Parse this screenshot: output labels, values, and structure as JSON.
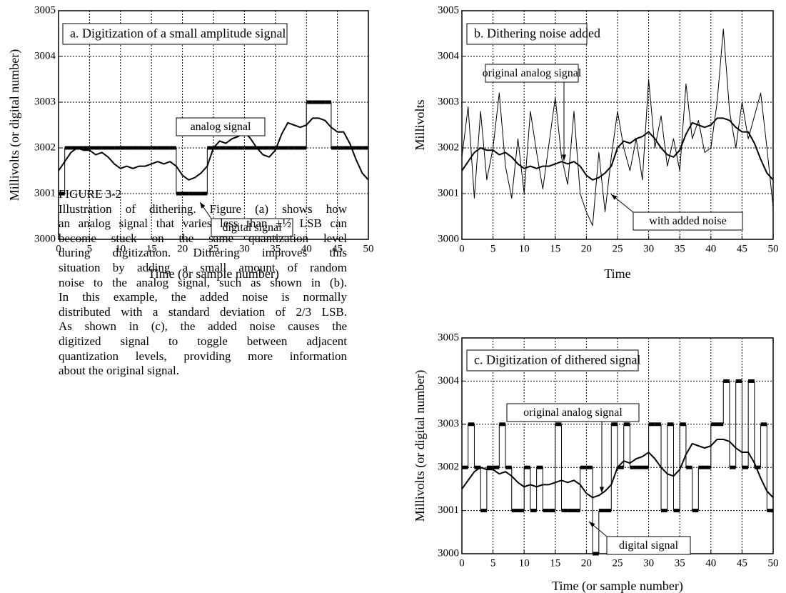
{
  "chart_data": [
    {
      "type": "line",
      "title": "a.  Digitization of a small amplitude signal",
      "xlabel": "Time (or sample number)",
      "ylabel": "Millivolts (or digital number)",
      "xlim": [
        0,
        50
      ],
      "xticks": [
        0,
        5,
        10,
        15,
        20,
        25,
        30,
        35,
        40,
        45,
        50
      ],
      "ylim": [
        3000,
        3005
      ],
      "yticks": [
        3000,
        3001,
        3002,
        3003,
        3004,
        3005
      ],
      "grid": true,
      "series": [
        {
          "name": "analog signal",
          "color": "#000000",
          "style": "line",
          "x": [
            0,
            1,
            2,
            3,
            4,
            5,
            6,
            7,
            8,
            9,
            10,
            11,
            12,
            13,
            14,
            15,
            16,
            17,
            18,
            19,
            20,
            21,
            22,
            23,
            24,
            25,
            26,
            27,
            28,
            29,
            30,
            31,
            32,
            33,
            34,
            35,
            36,
            37,
            38,
            39,
            40,
            41,
            42,
            43,
            44,
            45,
            46,
            47,
            48,
            49,
            50
          ],
          "values": [
            3001.5,
            3001.7,
            3001.9,
            3002.0,
            3001.95,
            3001.95,
            3001.85,
            3001.9,
            3001.8,
            3001.65,
            3001.55,
            3001.6,
            3001.55,
            3001.6,
            3001.6,
            3001.65,
            3001.7,
            3001.65,
            3001.7,
            3001.6,
            3001.4,
            3001.3,
            3001.35,
            3001.45,
            3001.6,
            3002.0,
            3002.15,
            3002.1,
            3002.2,
            3002.25,
            3002.35,
            3002.2,
            3002.0,
            3001.85,
            3001.8,
            3001.95,
            3002.3,
            3002.55,
            3002.5,
            3002.45,
            3002.5,
            3002.65,
            3002.65,
            3002.6,
            3002.45,
            3002.35,
            3002.35,
            3002.1,
            3001.75,
            3001.45,
            3001.3
          ]
        },
        {
          "name": "digital signal",
          "color": "#000000",
          "style": "step",
          "x": [
            0,
            1,
            2,
            3,
            4,
            5,
            6,
            7,
            8,
            9,
            10,
            11,
            12,
            13,
            14,
            15,
            16,
            17,
            18,
            19,
            20,
            21,
            22,
            23,
            24,
            25,
            26,
            27,
            28,
            29,
            30,
            31,
            32,
            33,
            34,
            35,
            36,
            37,
            38,
            39,
            40,
            41,
            42,
            43,
            44,
            45,
            46,
            47,
            48,
            49
          ],
          "values": [
            3001,
            3002,
            3002,
            3002,
            3002,
            3002,
            3002,
            3002,
            3002,
            3002,
            3002,
            3002,
            3002,
            3002,
            3002,
            3002,
            3002,
            3002,
            3002,
            3001,
            3001,
            3001,
            3001,
            3001,
            3002,
            3002,
            3002,
            3002,
            3002,
            3002,
            3002,
            3002,
            3002,
            3002,
            3002,
            3002,
            3002,
            3002,
            3002,
            3002,
            3003,
            3003,
            3003,
            3003,
            3002,
            3002,
            3002,
            3002,
            3002,
            3002
          ]
        }
      ]
    },
    {
      "type": "line",
      "title": "b.  Dithering noise added",
      "xlabel": "Time",
      "ylabel": "Millivolts",
      "xlim": [
        0,
        50
      ],
      "xticks": [
        0,
        5,
        10,
        15,
        20,
        25,
        30,
        35,
        40,
        45,
        50
      ],
      "ylim": [
        3000,
        3005
      ],
      "yticks": [
        3000,
        3001,
        3002,
        3003,
        3004,
        3005
      ],
      "grid": true,
      "series": [
        {
          "name": "original analog signal",
          "color": "#000000",
          "style": "line",
          "x": [
            0,
            1,
            2,
            3,
            4,
            5,
            6,
            7,
            8,
            9,
            10,
            11,
            12,
            13,
            14,
            15,
            16,
            17,
            18,
            19,
            20,
            21,
            22,
            23,
            24,
            25,
            26,
            27,
            28,
            29,
            30,
            31,
            32,
            33,
            34,
            35,
            36,
            37,
            38,
            39,
            40,
            41,
            42,
            43,
            44,
            45,
            46,
            47,
            48,
            49,
            50
          ],
          "values": [
            3001.5,
            3001.7,
            3001.9,
            3002.0,
            3001.95,
            3001.95,
            3001.85,
            3001.9,
            3001.8,
            3001.65,
            3001.55,
            3001.6,
            3001.55,
            3001.6,
            3001.6,
            3001.65,
            3001.7,
            3001.65,
            3001.7,
            3001.6,
            3001.4,
            3001.3,
            3001.35,
            3001.45,
            3001.6,
            3002.0,
            3002.15,
            3002.1,
            3002.2,
            3002.25,
            3002.35,
            3002.2,
            3002.0,
            3001.85,
            3001.8,
            3001.95,
            3002.3,
            3002.55,
            3002.5,
            3002.45,
            3002.5,
            3002.65,
            3002.65,
            3002.6,
            3002.45,
            3002.35,
            3002.35,
            3002.1,
            3001.75,
            3001.45,
            3001.3
          ]
        },
        {
          "name": "with added noise",
          "color": "#000000",
          "style": "thin",
          "x": [
            0,
            1,
            2,
            3,
            4,
            5,
            6,
            7,
            8,
            9,
            10,
            11,
            12,
            13,
            14,
            15,
            16,
            17,
            18,
            19,
            20,
            21,
            22,
            23,
            24,
            25,
            26,
            27,
            28,
            29,
            30,
            31,
            32,
            33,
            34,
            35,
            36,
            37,
            38,
            39,
            40,
            41,
            42,
            43,
            44,
            45,
            46,
            47,
            48,
            49,
            50
          ],
          "values": [
            3001.8,
            3002.9,
            3000.9,
            3002.8,
            3001.3,
            3002.0,
            3003.2,
            3001.6,
            3000.9,
            3002.2,
            3001.0,
            3002.8,
            3001.9,
            3001.1,
            3002.1,
            3003.1,
            3001.8,
            3001.2,
            3002.8,
            3001.0,
            3000.6,
            3000.3,
            3001.9,
            3000.6,
            3001.8,
            3002.8,
            3002.0,
            3001.5,
            3002.2,
            3001.3,
            3003.5,
            3002.0,
            3002.7,
            3001.6,
            3002.2,
            3001.5,
            3003.4,
            3002.2,
            3002.6,
            3001.9,
            3002.0,
            3003.0,
            3004.6,
            3002.8,
            3002.0,
            3003.0,
            3002.2,
            3002.7,
            3003.2,
            3002.0,
            3000.7
          ]
        }
      ]
    },
    {
      "type": "line",
      "title": "c.  Digitization of dithered signal",
      "xlabel": "Time (or sample number)",
      "ylabel": "Millivolts (or digital number)",
      "xlim": [
        0,
        50
      ],
      "xticks": [
        0,
        5,
        10,
        15,
        20,
        25,
        30,
        35,
        40,
        45,
        50
      ],
      "ylim": [
        3000,
        3005
      ],
      "yticks": [
        3000,
        3001,
        3002,
        3003,
        3004,
        3005
      ],
      "grid": true,
      "series": [
        {
          "name": "original analog signal",
          "color": "#000000",
          "style": "line",
          "x": [
            0,
            1,
            2,
            3,
            4,
            5,
            6,
            7,
            8,
            9,
            10,
            11,
            12,
            13,
            14,
            15,
            16,
            17,
            18,
            19,
            20,
            21,
            22,
            23,
            24,
            25,
            26,
            27,
            28,
            29,
            30,
            31,
            32,
            33,
            34,
            35,
            36,
            37,
            38,
            39,
            40,
            41,
            42,
            43,
            44,
            45,
            46,
            47,
            48,
            49,
            50
          ],
          "values": [
            3001.5,
            3001.7,
            3001.9,
            3002.0,
            3001.95,
            3001.95,
            3001.85,
            3001.9,
            3001.8,
            3001.65,
            3001.55,
            3001.6,
            3001.55,
            3001.6,
            3001.6,
            3001.65,
            3001.7,
            3001.65,
            3001.7,
            3001.6,
            3001.4,
            3001.3,
            3001.35,
            3001.45,
            3001.6,
            3002.0,
            3002.15,
            3002.1,
            3002.2,
            3002.25,
            3002.35,
            3002.2,
            3002.0,
            3001.85,
            3001.8,
            3001.95,
            3002.3,
            3002.55,
            3002.5,
            3002.45,
            3002.5,
            3002.65,
            3002.65,
            3002.6,
            3002.45,
            3002.35,
            3002.35,
            3002.1,
            3001.75,
            3001.45,
            3001.3
          ]
        },
        {
          "name": "digital signal",
          "color": "#000000",
          "style": "step",
          "x": [
            0,
            1,
            2,
            3,
            4,
            5,
            6,
            7,
            8,
            9,
            10,
            11,
            12,
            13,
            14,
            15,
            16,
            17,
            18,
            19,
            20,
            21,
            22,
            23,
            24,
            25,
            26,
            27,
            28,
            29,
            30,
            31,
            32,
            33,
            34,
            35,
            36,
            37,
            38,
            39,
            40,
            41,
            42,
            43,
            44,
            45,
            46,
            47,
            48,
            49
          ],
          "values": [
            3002,
            3003,
            3002,
            3001,
            3002,
            3002,
            3003,
            3002,
            3001,
            3001,
            3002,
            3001,
            3002,
            3001,
            3001,
            3003,
            3001,
            3001,
            3001,
            3002,
            3002,
            3000,
            3001,
            3001,
            3003,
            3002,
            3003,
            3002,
            3002,
            3002,
            3003,
            3003,
            3001,
            3003,
            3001,
            3003,
            3002,
            3001,
            3002,
            3002,
            3003,
            3003,
            3004,
            3002,
            3004,
            3002,
            3004,
            3002,
            3003,
            3001
          ]
        }
      ]
    }
  ],
  "caption": {
    "label": "FIGURE 3-2",
    "lines": [
      "Illustration of dithering.  Figure (a) shows how",
      "an analog signal that varies less than ±½ LSB can",
      "become stuck on the same quantization level",
      "during digitization.  Dithering improves this",
      "situation by adding a small amount of random",
      "noise to the analog signal, such as shown in (b).",
      "In this example, the added noise is normally",
      "distributed with a standard deviation of 2/3 LSB.",
      "As shown in (c), the added noise causes the",
      "digitized signal to toggle between adjacent",
      "quantization levels, providing more information",
      "about the original signal."
    ]
  }
}
